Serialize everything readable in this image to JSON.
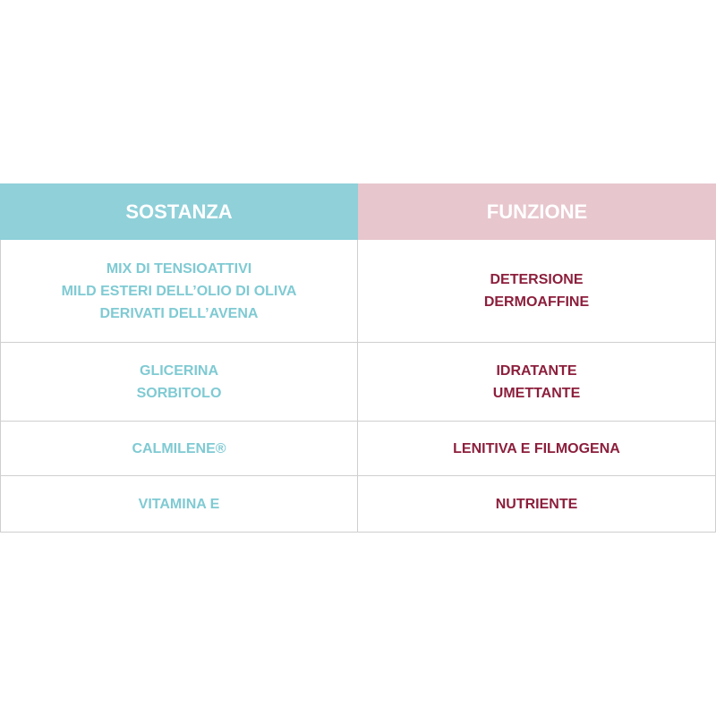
{
  "table": {
    "header": [
      "SOSTANZA",
      "FUNZIONE"
    ],
    "rows": [
      [
        [
          "MIX DI TENSIOATTIVI",
          "MILD ESTERI DELL’OLIO DI OLIVA",
          "DERIVATI DELL’AVENA"
        ],
        [
          "DETERSIONE",
          "DERMOAFFINE"
        ]
      ],
      [
        [
          "GLICERINA",
          "SORBITOLO"
        ],
        [
          "IDRATANTE",
          "UMETTANTE"
        ]
      ],
      [
        [
          "CALMILENE®"
        ],
        [
          "LENITIVA E FILMOGENA"
        ]
      ],
      [
        [
          "VITAMINA E"
        ],
        [
          "NUTRIENTE"
        ]
      ]
    ]
  }
}
